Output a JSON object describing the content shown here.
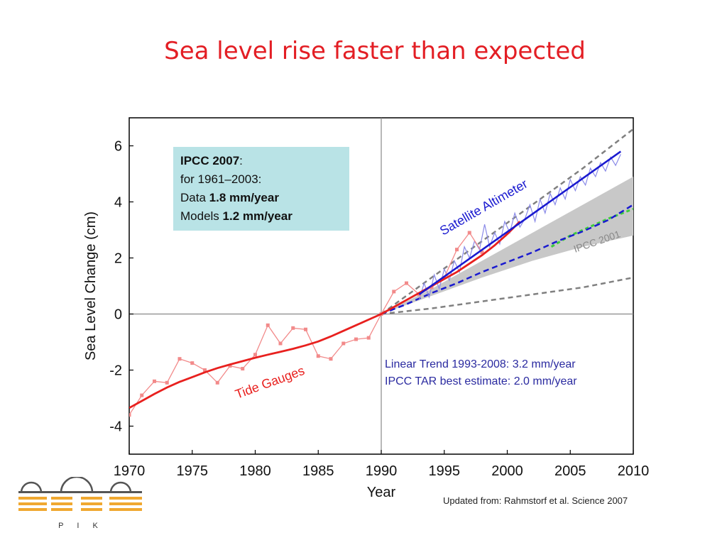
{
  "slide": {
    "title": "Sea level rise faster than expected",
    "source": "Updated from: Rahmstorf et al. Science 2007",
    "logo_text": "P I K"
  },
  "colors": {
    "title": "#e31e24",
    "tide": "#e8201e",
    "tide_obs": "#f28a8a",
    "satellite": "#1a1ad0",
    "satellite_obs": "#8a8ae8",
    "ipcc_band": "#c8c8c8",
    "ipcc_dashed": "#808080",
    "trend_text": "#2a2aa0",
    "infobox_bg": "#b9e3e6",
    "logo": "#f0a830"
  },
  "chart_data": {
    "type": "line",
    "xlabel": "Year",
    "ylabel": "Sea Level Change (cm)",
    "xlim": [
      1970,
      2010
    ],
    "ylim": [
      -5,
      7
    ],
    "xticks": [
      1970,
      1975,
      1980,
      1985,
      1990,
      1995,
      2000,
      2005,
      2010
    ],
    "yticks": [
      -4,
      -2,
      0,
      2,
      4,
      6
    ],
    "reference_lines": {
      "x": 1990,
      "y": 0
    },
    "infobox": {
      "title": "IPCC 2007",
      "title_suffix": ":",
      "line2": "for 1961–2003:",
      "data_prefix": "Data ",
      "data_value": "1.8 mm/year",
      "models_prefix": "Models ",
      "models_value": "1.2 mm/year"
    },
    "annotations": {
      "satellite": "Satellite Altimeter",
      "tide": "Tide Gauges",
      "ipcc": "IPCC 2001",
      "trend1": "Linear Trend 1993-2008: 3.2 mm/year",
      "trend2": "IPCC TAR best estimate: 2.0 mm/year"
    },
    "series": [
      {
        "name": "Tide Gauges",
        "x": [
          1970,
          1971,
          1972,
          1973,
          1974,
          1975,
          1976,
          1977,
          1978,
          1979,
          1980,
          1981,
          1982,
          1983,
          1984,
          1985,
          1986,
          1987,
          1988,
          1989,
          1990,
          1991,
          1992,
          1993,
          1994,
          1995,
          1996,
          1997,
          1998,
          1999,
          2000,
          2001
        ],
        "y": [
          -3.35,
          -3.1,
          -2.85,
          -2.62,
          -2.42,
          -2.25,
          -2.08,
          -1.93,
          -1.8,
          -1.68,
          -1.56,
          -1.45,
          -1.35,
          -1.24,
          -1.12,
          -0.98,
          -0.8,
          -0.6,
          -0.4,
          -0.2,
          0.0,
          0.25,
          0.5,
          0.75,
          1.0,
          1.25,
          1.5,
          1.8,
          2.1,
          2.45,
          2.85,
          3.3
        ]
      },
      {
        "name": "Tide Gauges (annual)",
        "x": [
          1970,
          1971,
          1972,
          1973,
          1974,
          1975,
          1976,
          1977,
          1978,
          1979,
          1980,
          1981,
          1982,
          1983,
          1984,
          1985,
          1986,
          1987,
          1988,
          1989,
          1990,
          1991,
          1992,
          1993,
          1994,
          1995,
          1996,
          1997,
          1998
        ],
        "y": [
          -3.6,
          -2.9,
          -2.4,
          -2.45,
          -1.6,
          -1.75,
          -2.0,
          -2.45,
          -1.85,
          -1.95,
          -1.45,
          -0.4,
          -1.05,
          -0.5,
          -0.55,
          -1.5,
          -1.6,
          -1.05,
          -0.9,
          -0.85,
          0.0,
          0.8,
          1.1,
          0.7,
          0.95,
          1.3,
          2.3,
          2.9,
          2.2
        ]
      },
      {
        "name": "Satellite Altimeter (trend)",
        "x": [
          1993,
          2009
        ],
        "y": [
          0.7,
          5.8
        ]
      },
      {
        "name": "Satellite Altimeter (observed)",
        "x": [
          1993.0,
          1993.4,
          1993.8,
          1994.2,
          1994.6,
          1995.0,
          1995.4,
          1995.8,
          1996.2,
          1996.6,
          1997.0,
          1997.4,
          1997.8,
          1998.2,
          1998.6,
          1999.0,
          1999.4,
          1999.8,
          2000.2,
          2000.6,
          2001.0,
          2001.4,
          2001.8,
          2002.2,
          2002.6,
          2003.0,
          2003.4,
          2003.8,
          2004.2,
          2004.6,
          2005.0,
          2005.4,
          2005.8,
          2006.2,
          2006.6,
          2007.0,
          2007.4,
          2007.8,
          2008.2,
          2008.6,
          2009.0
        ],
        "y": [
          0.5,
          1.1,
          0.6,
          1.4,
          0.9,
          1.6,
          1.2,
          1.9,
          1.5,
          2.4,
          2.0,
          2.6,
          2.3,
          3.2,
          2.4,
          2.9,
          2.5,
          3.3,
          2.9,
          3.6,
          3.1,
          3.4,
          3.9,
          3.3,
          4.1,
          3.6,
          4.3,
          3.9,
          4.5,
          4.1,
          4.8,
          4.4,
          4.9,
          4.6,
          5.2,
          4.9,
          5.4,
          5.1,
          5.6,
          5.3,
          5.7
        ]
      },
      {
        "name": "IPCC TAR best estimate",
        "x": [
          1990,
          1992,
          1994,
          1996,
          1998,
          2000,
          2002,
          2004,
          2006,
          2008,
          2010
        ],
        "y": [
          0.0,
          0.35,
          0.75,
          1.1,
          1.5,
          1.85,
          2.2,
          2.6,
          2.95,
          3.35,
          3.9
        ]
      },
      {
        "name": "IPCC 2001 band upper",
        "x": [
          1990,
          1994,
          1998,
          2002,
          2006,
          2010
        ],
        "y": [
          0.0,
          0.9,
          1.9,
          2.9,
          3.9,
          4.9
        ]
      },
      {
        "name": "IPCC 2001 band lower",
        "x": [
          1990,
          1994,
          1998,
          2002,
          2006,
          2010
        ],
        "y": [
          0.0,
          0.65,
          1.3,
          1.9,
          2.4,
          2.8
        ]
      },
      {
        "name": "IPCC 2001 upper bound",
        "x": [
          1990,
          1994,
          1998,
          2002,
          2006,
          2010
        ],
        "y": [
          0.0,
          1.3,
          2.6,
          3.9,
          5.2,
          6.6
        ]
      },
      {
        "name": "IPCC 2001 lower bound",
        "x": [
          1990,
          1994,
          1998,
          2002,
          2006,
          2010
        ],
        "y": [
          0.0,
          0.2,
          0.45,
          0.7,
          0.95,
          1.3
        ]
      },
      {
        "name": "Model projection",
        "x": [
          2003.5,
          2005,
          2006.5,
          2008,
          2010
        ],
        "y": [
          2.4,
          2.8,
          3.1,
          3.4,
          3.75
        ]
      }
    ]
  }
}
